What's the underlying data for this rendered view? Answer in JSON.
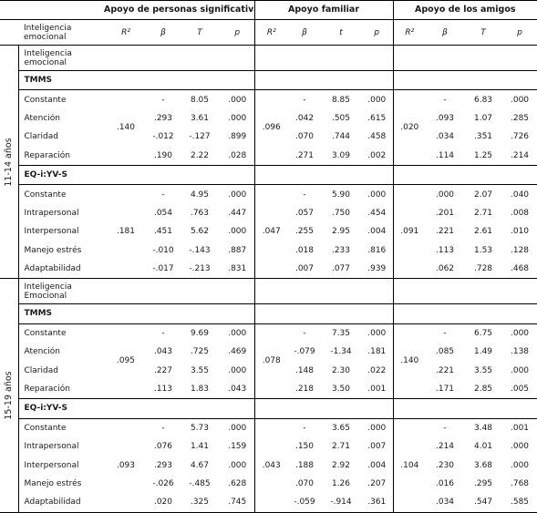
{
  "header": {
    "groups": [
      "Apoyo de personas significativas",
      "Apoyo familiar",
      "Apoyo de los amigos"
    ],
    "row_label": "Inteligencia emocional",
    "cols": [
      [
        "R²",
        "β",
        "T",
        "p"
      ],
      [
        "R²",
        "β",
        "t",
        "p"
      ],
      [
        "R²",
        "β",
        "T",
        "p"
      ]
    ]
  },
  "age_groups": [
    {
      "label": "11-14 años",
      "intro_label": "Inteligencia emocional",
      "sections": [
        {
          "title": "TMMS",
          "r2": [
            ".140",
            ".096",
            ".020"
          ],
          "rows": [
            {
              "label": "Constante",
              "cells": [
                [
                  "-",
                  "8.05",
                  ".000"
                ],
                [
                  "-",
                  "8.85",
                  ".000"
                ],
                [
                  "-",
                  "6.83",
                  ".000"
                ]
              ]
            },
            {
              "label": "Atención",
              "cells": [
                [
                  ".293",
                  "3.61",
                  ".000"
                ],
                [
                  ".042",
                  ".505",
                  ".615"
                ],
                [
                  ".093",
                  "1.07",
                  ".285"
                ]
              ]
            },
            {
              "label": "Claridad",
              "cells": [
                [
                  "-.012",
                  "-.127",
                  ".899"
                ],
                [
                  ".070",
                  ".744",
                  ".458"
                ],
                [
                  ".034",
                  ".351",
                  ".726"
                ]
              ]
            },
            {
              "label": "Reparación",
              "cells": [
                [
                  ".190",
                  "2.22",
                  ".028"
                ],
                [
                  ".271",
                  "3.09",
                  ".002"
                ],
                [
                  ".114",
                  "1.25",
                  ".214"
                ]
              ]
            }
          ]
        },
        {
          "title": "EQ-i:YV-S",
          "r2": [
            ".181",
            ".047",
            ".091"
          ],
          "rows": [
            {
              "label": "Constante",
              "cells": [
                [
                  "-",
                  "4.95",
                  ".000"
                ],
                [
                  "-",
                  "5.90",
                  ".000"
                ],
                [
                  ".000",
                  "2.07",
                  ".040"
                ]
              ]
            },
            {
              "label": "Intrapersonal",
              "cells": [
                [
                  ".054",
                  ".763",
                  ".447"
                ],
                [
                  ".057",
                  ".750",
                  ".454"
                ],
                [
                  ".201",
                  "2.71",
                  ".008"
                ]
              ]
            },
            {
              "label": "Interpersonal",
              "cells": [
                [
                  ".451",
                  "5.62",
                  ".000"
                ],
                [
                  ".255",
                  "2.95",
                  ".004"
                ],
                [
                  ".221",
                  "2.61",
                  ".010"
                ]
              ]
            },
            {
              "label": "Manejo estrés",
              "cells": [
                [
                  "-.010",
                  "-.143",
                  ".887"
                ],
                [
                  ".018",
                  ".233",
                  ".816"
                ],
                [
                  ".113",
                  "1.53",
                  ".128"
                ]
              ]
            },
            {
              "label": "Adaptabilidad",
              "cells": [
                [
                  "-.017",
                  "-.213",
                  ".831"
                ],
                [
                  ".007",
                  ".077",
                  ".939"
                ],
                [
                  ".062",
                  ".728",
                  ".468"
                ]
              ]
            }
          ]
        }
      ]
    },
    {
      "label": "15-19 años",
      "intro_label": "Inteligencia Emocional",
      "sections": [
        {
          "title": "TMMS",
          "r2": [
            ".095",
            ".078",
            ".140"
          ],
          "rows": [
            {
              "label": "Constante",
              "cells": [
                [
                  "-",
                  "9.69",
                  ".000"
                ],
                [
                  "-",
                  "7.35",
                  ".000"
                ],
                [
                  "-",
                  "6.75",
                  ".000"
                ]
              ]
            },
            {
              "label": "Atención",
              "cells": [
                [
                  ".043",
                  ".725",
                  ".469"
                ],
                [
                  "-.079",
                  "-1.34",
                  ".181"
                ],
                [
                  ".085",
                  "1.49",
                  ".138"
                ]
              ]
            },
            {
              "label": "Claridad",
              "cells": [
                [
                  ".227",
                  "3.55",
                  ".000"
                ],
                [
                  ".148",
                  "2.30",
                  ".022"
                ],
                [
                  ".221",
                  "3.55",
                  ".000"
                ]
              ]
            },
            {
              "label": "Reparación",
              "cells": [
                [
                  ".113",
                  "1.83",
                  ".043"
                ],
                [
                  ".218",
                  "3.50",
                  ".001"
                ],
                [
                  ".171",
                  "2.85",
                  ".005"
                ]
              ]
            }
          ]
        },
        {
          "title": "EQ-i:YV-S",
          "r2": [
            ".093",
            ".043",
            ".104"
          ],
          "rows": [
            {
              "label": "Constante",
              "cells": [
                [
                  "-",
                  "5.73",
                  ".000"
                ],
                [
                  "-",
                  "3.65",
                  ".000"
                ],
                [
                  "-",
                  "3.48",
                  ".001"
                ]
              ]
            },
            {
              "label": "Intrapersonal",
              "cells": [
                [
                  ".076",
                  "1.41",
                  ".159"
                ],
                [
                  ".150",
                  "2.71",
                  ".007"
                ],
                [
                  ".214",
                  "4.01",
                  ".000"
                ]
              ]
            },
            {
              "label": "Interpersonal",
              "cells": [
                [
                  ".293",
                  "4.67",
                  ".000"
                ],
                [
                  ".188",
                  "2.92",
                  ".004"
                ],
                [
                  ".230",
                  "3.68",
                  ".000"
                ]
              ]
            },
            {
              "label": "Manejo estrés",
              "cells": [
                [
                  "-.026",
                  "-.485",
                  ".628"
                ],
                [
                  ".070",
                  "1.26",
                  ".207"
                ],
                [
                  ".016",
                  ".295",
                  ".768"
                ]
              ]
            },
            {
              "label": "Adaptabilidad",
              "cells": [
                [
                  ".020",
                  ".325",
                  ".745"
                ],
                [
                  "-.059",
                  "-.914",
                  ".361"
                ],
                [
                  ".034",
                  ".547",
                  ".585"
                ]
              ]
            }
          ]
        }
      ]
    }
  ]
}
